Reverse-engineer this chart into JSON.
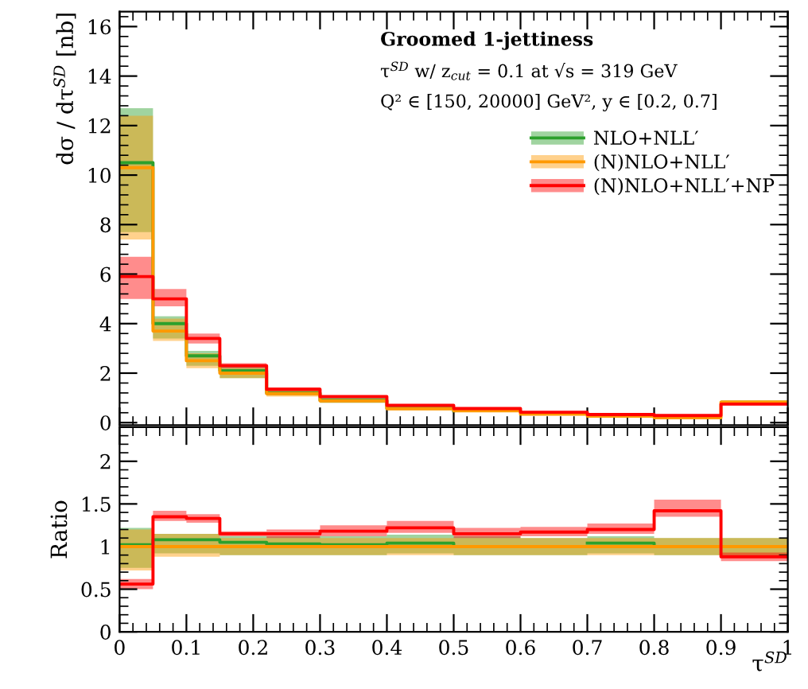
{
  "chart_data": [
    {
      "type": "step",
      "title": "Groomed 1-jettiness",
      "annotations": [
        "τ$^{SD}$ w/ z$_{cut}$ = 0.1 at √s = 319 GeV",
        "Q² ∈ [150, 20000] GeV², y ∈ [0.2, 0.7]"
      ],
      "ylabel": "dσ / dτ$^{SD}$ [nb]",
      "x": [
        0,
        0.05,
        0.1,
        0.15,
        0.22,
        0.3,
        0.4,
        0.5,
        0.6,
        0.7,
        0.8,
        0.9,
        1.0
      ],
      "xlim": [
        0,
        1
      ],
      "xticks": [
        0,
        0.1,
        0.2,
        0.3,
        0.4,
        0.5,
        0.6,
        0.7,
        0.8,
        0.9,
        1
      ],
      "ylim": [
        -0.1,
        16.6
      ],
      "yticks": [
        0,
        2,
        4,
        6,
        8,
        10,
        12,
        14,
        16
      ],
      "tick_labels": "y",
      "legend": "top right",
      "grid": false,
      "series": [
        {
          "name": "NLO+NLL′",
          "color": "#2ca02c",
          "values": [
            10.5,
            4.0,
            2.7,
            2.1,
            1.2,
            0.9,
            0.58,
            0.48,
            null,
            null,
            null,
            null,
            null
          ],
          "lower": [
            7.7,
            3.4,
            2.3,
            1.8,
            1.1,
            0.8,
            0.52,
            0.43,
            0.31,
            0.24,
            0.18,
            0.75,
            0.75
          ],
          "upper": [
            12.7,
            4.3,
            2.9,
            2.3,
            1.3,
            1.0,
            0.64,
            0.53,
            0.37,
            0.29,
            0.22,
            0.9,
            0.9
          ]
        },
        {
          "name": "(N)NLO+NLL′",
          "color": "#ff9900",
          "values": [
            10.3,
            3.7,
            2.5,
            2.0,
            1.17,
            0.88,
            0.56,
            0.48,
            0.34,
            0.26,
            0.2,
            0.83,
            0.83
          ],
          "lower": [
            7.4,
            3.3,
            2.2,
            1.8,
            1.05,
            0.8,
            0.5,
            0.43,
            0.3,
            0.23,
            0.18,
            0.75,
            0.75
          ],
          "upper": [
            12.4,
            4.2,
            2.8,
            2.2,
            1.3,
            0.98,
            0.62,
            0.53,
            0.37,
            0.29,
            0.22,
            0.9,
            0.9
          ]
        },
        {
          "name": "(N)NLO+NLL′+NP",
          "color": "#ff0000",
          "values": [
            5.9,
            5.0,
            3.4,
            2.3,
            1.35,
            1.05,
            0.7,
            0.57,
            0.42,
            0.33,
            0.29,
            0.75,
            0.75
          ],
          "lower": [
            5.0,
            4.7,
            3.2,
            2.2,
            1.28,
            1.0,
            0.66,
            0.53,
            0.39,
            0.3,
            0.26,
            0.7,
            0.7
          ],
          "upper": [
            6.7,
            5.4,
            3.6,
            2.4,
            1.42,
            1.1,
            0.74,
            0.61,
            0.45,
            0.36,
            0.32,
            0.8,
            0.8
          ]
        }
      ]
    },
    {
      "type": "step",
      "ylabel": "Ratio",
      "xlabel": "τ$^{SD}$",
      "x": [
        0,
        0.05,
        0.1,
        0.15,
        0.22,
        0.3,
        0.4,
        0.5,
        0.6,
        0.7,
        0.8,
        0.9,
        1.0
      ],
      "xlim": [
        0,
        1
      ],
      "xticks": [
        0,
        0.1,
        0.2,
        0.3,
        0.4,
        0.5,
        0.6,
        0.7,
        0.8,
        0.9,
        1
      ],
      "ylim": [
        0,
        2.4
      ],
      "yticks": [
        0,
        0.5,
        1,
        1.5,
        2
      ],
      "grid": false,
      "series": [
        {
          "color": "#2ca02c",
          "values": [
            1.02,
            1.08,
            1.08,
            1.05,
            1.03,
            1.02,
            1.04,
            1.0,
            null,
            1.04,
            1.0,
            null,
            null
          ],
          "lower": [
            0.75,
            0.92,
            0.92,
            0.9,
            0.9,
            0.9,
            0.92,
            0.9,
            0.9,
            0.92,
            0.9,
            0.9,
            0.9
          ],
          "upper": [
            1.22,
            1.15,
            1.15,
            1.12,
            1.12,
            1.12,
            1.14,
            1.12,
            1.1,
            1.12,
            1.1,
            1.1,
            1.1
          ]
        },
        {
          "color": "#ff9900",
          "values": [
            1,
            1,
            1,
            1,
            1,
            1,
            1,
            1,
            1,
            1,
            1,
            1,
            1
          ],
          "lower": [
            0.72,
            0.88,
            0.88,
            0.9,
            0.9,
            0.9,
            0.9,
            0.9,
            0.9,
            0.9,
            0.9,
            0.9,
            0.9
          ],
          "upper": [
            1.2,
            1.15,
            1.15,
            1.1,
            1.1,
            1.1,
            1.1,
            1.1,
            1.1,
            1.1,
            1.1,
            1.1,
            1.1
          ]
        },
        {
          "color": "#ff0000",
          "values": [
            0.56,
            1.35,
            1.33,
            1.15,
            1.15,
            1.18,
            1.22,
            1.15,
            1.17,
            1.2,
            1.42,
            0.88,
            0.88
          ],
          "lower": [
            0.5,
            1.3,
            1.28,
            1.12,
            1.1,
            1.12,
            1.16,
            1.1,
            1.12,
            1.15,
            1.35,
            0.83,
            0.83
          ],
          "upper": [
            0.62,
            1.42,
            1.38,
            1.18,
            1.2,
            1.25,
            1.3,
            1.22,
            1.23,
            1.27,
            1.55,
            0.93,
            0.93
          ]
        }
      ]
    }
  ]
}
